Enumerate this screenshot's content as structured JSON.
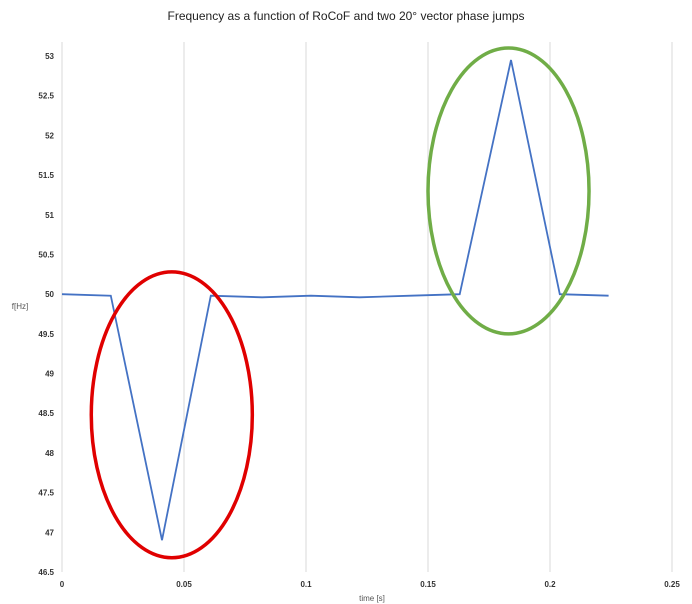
{
  "chart_data": {
    "type": "line",
    "title": "Frequency as a function of RoCoF and two 20° vector phase jumps",
    "xlabel": "time [s]",
    "ylabel": "f[Hz]",
    "xlim": [
      0,
      0.25
    ],
    "ylim": [
      46.5,
      53
    ],
    "x_ticks": [
      "0",
      "0.05",
      "0.1",
      "0.15",
      "0.2",
      "0.25"
    ],
    "y_ticks": [
      "46.5",
      "47",
      "47.5",
      "48",
      "48.5",
      "49",
      "49.5",
      "50",
      "50.5",
      "51",
      "51.5",
      "52",
      "52.5",
      "53"
    ],
    "grid": "vertical",
    "legend": "none",
    "colors": {
      "series": "#4472c4",
      "annotation_dip": "#e00000",
      "annotation_spike": "#70ad47",
      "grid": "#d9d9d9"
    },
    "series": [
      {
        "x": [
          0,
          0.02,
          0.041,
          0.061,
          0.082,
          0.102,
          0.122,
          0.143,
          0.163,
          0.184,
          0.204,
          0.224
        ],
        "values": [
          50.0,
          49.98,
          46.9,
          49.98,
          49.96,
          49.98,
          49.96,
          49.98,
          50.0,
          52.95,
          50.0,
          49.98
        ]
      }
    ],
    "annotations": [
      {
        "shape": "ellipse",
        "color": "#e00000",
        "center": [
          0.045,
          48.48
        ],
        "rx_data": 0.033,
        "ry_data": 1.8
      },
      {
        "shape": "ellipse",
        "color": "#70ad47",
        "center": [
          0.183,
          51.3
        ],
        "rx_data": 0.033,
        "ry_data": 1.8
      }
    ]
  }
}
